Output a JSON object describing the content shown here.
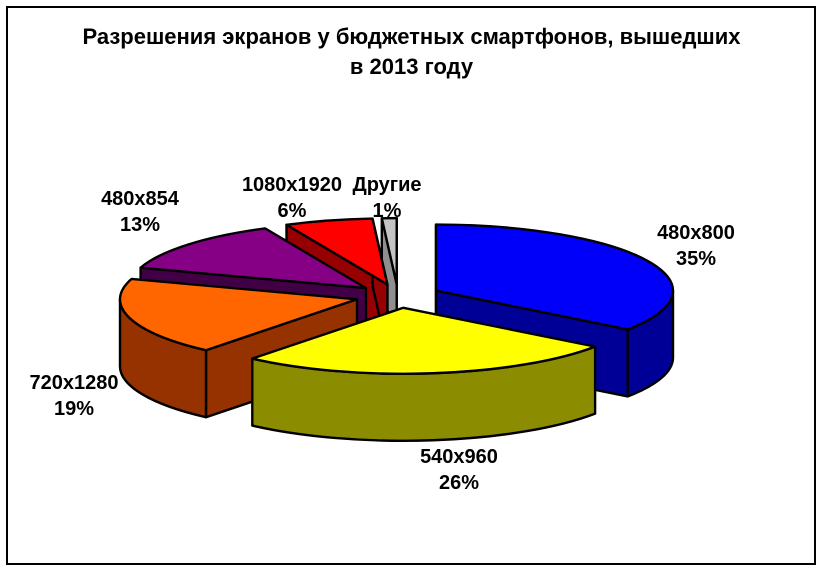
{
  "chart_data": {
    "type": "pie",
    "style": "3d-exploded",
    "title": "Разрешения экранов у бюджетных смартфонов, вышедших в 2013 году",
    "unit": "%",
    "direction": "clockwise",
    "start_angle_deg": 0,
    "legend": "none",
    "background": "#FFFFFF",
    "frame_border_color": "#000000",
    "outline_color": "#000000",
    "categories": [
      "480x800",
      "540x960",
      "720x1280",
      "480x854",
      "1080x1920",
      "Другие"
    ],
    "values": [
      35,
      26,
      19,
      13,
      6,
      1
    ],
    "slices": [
      {
        "id": "480x800",
        "label": "480x800",
        "value": 35,
        "pct_text": "35%",
        "color_top": "#0000FA",
        "color_side": "#000096"
      },
      {
        "id": "540x960",
        "label": "540x960",
        "value": 26,
        "pct_text": "26%",
        "color_top": "#FFFF00",
        "color_side": "#8C8C00"
      },
      {
        "id": "720x1280",
        "label": "720x1280",
        "value": 19,
        "pct_text": "19%",
        "color_top": "#FF6600",
        "color_side": "#963200"
      },
      {
        "id": "480x854",
        "label": "480x854",
        "value": 13,
        "pct_text": "13%",
        "color_top": "#850085",
        "color_side": "#410045"
      },
      {
        "id": "1080x1920",
        "label": "1080x1920",
        "value": 6,
        "pct_text": "6%",
        "color_top": "#FF0000",
        "color_side": "#970000"
      },
      {
        "id": "drugie",
        "label": "Другие",
        "value": 1,
        "pct_text": "1%",
        "color_top": "#C4C4C4",
        "color_side": "#8F8F8F"
      }
    ]
  }
}
